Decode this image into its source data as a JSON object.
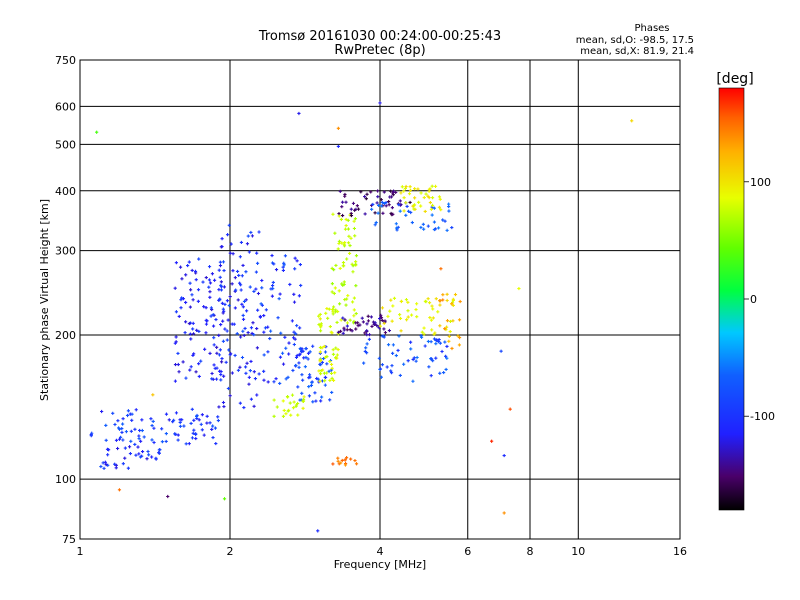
{
  "chart_data": {
    "type": "scatter",
    "title_line1": "Tromsø 20161030 00:24:00-00:25:43",
    "title_line2": "RwPretec (8p)",
    "stats": {
      "heading": "Phases",
      "o_line": "mean, sd,O: -98.5, 17.5",
      "x_line": "mean, sd,X:  81.9, 21.4"
    },
    "xlabel": "Frequency [MHz]",
    "ylabel": "Stationary phase Virtual Height [km]",
    "xscale": "log",
    "yscale": "log",
    "xlim": [
      1,
      16
    ],
    "ylim": [
      75,
      750
    ],
    "x_ticks": [
      "1",
      "2",
      "4",
      "6",
      "8",
      "10",
      "16"
    ],
    "x_tick_values": [
      1,
      2,
      4,
      6,
      8,
      10,
      16
    ],
    "x_grid": [
      2,
      4,
      6,
      8,
      10
    ],
    "y_ticks": [
      "75",
      "100",
      "200",
      "300",
      "400",
      "500",
      "600",
      "750"
    ],
    "y_tick_values": [
      75,
      100,
      200,
      300,
      400,
      500,
      600,
      750
    ],
    "y_grid": [
      100,
      200,
      300,
      400,
      500,
      600
    ],
    "grid": true,
    "colorbar": {
      "label": "[deg]",
      "range": [
        -180,
        180
      ],
      "ticks": [
        "100",
        "0",
        "-100"
      ],
      "tick_values": [
        100,
        0,
        -100
      ]
    },
    "clusters": [
      {
        "f0": 1.05,
        "f1": 1.9,
        "h0": 118,
        "h1": 140,
        "phase": -105,
        "n": 90
      },
      {
        "f0": 1.1,
        "f1": 1.45,
        "h0": 105,
        "h1": 118,
        "phase": -110,
        "n": 35
      },
      {
        "f0": 1.55,
        "f1": 1.95,
        "h0": 160,
        "h1": 290,
        "phase": -115,
        "n": 110
      },
      {
        "f0": 1.9,
        "f1": 2.3,
        "h0": 140,
        "h1": 340,
        "phase": -110,
        "n": 110
      },
      {
        "f0": 2.3,
        "f1": 2.8,
        "h0": 155,
        "h1": 300,
        "phase": -105,
        "n": 70
      },
      {
        "f0": 2.7,
        "f1": 3.2,
        "h0": 145,
        "h1": 190,
        "phase": -100,
        "n": 60
      },
      {
        "f0": 2.45,
        "f1": 2.9,
        "h0": 135,
        "h1": 150,
        "phase": 80,
        "n": 25
      },
      {
        "f0": 3.0,
        "f1": 3.3,
        "h0": 160,
        "h1": 230,
        "phase": 85,
        "n": 55
      },
      {
        "f0": 3.2,
        "f1": 3.6,
        "h0": 210,
        "h1": 360,
        "phase": 75,
        "n": 70
      },
      {
        "f0": 3.3,
        "f1": 4.2,
        "h0": 200,
        "h1": 220,
        "phase": -140,
        "n": 45
      },
      {
        "f0": 3.3,
        "f1": 4.6,
        "h0": 355,
        "h1": 400,
        "phase": -150,
        "n": 50
      },
      {
        "f0": 3.8,
        "f1": 5.6,
        "h0": 330,
        "h1": 380,
        "phase": -90,
        "n": 40
      },
      {
        "f0": 4.4,
        "f1": 5.3,
        "h0": 360,
        "h1": 410,
        "phase": 95,
        "n": 40
      },
      {
        "f0": 3.6,
        "f1": 5.5,
        "h0": 160,
        "h1": 200,
        "phase": -95,
        "n": 60
      },
      {
        "f0": 4.0,
        "f1": 5.7,
        "h0": 200,
        "h1": 240,
        "phase": 95,
        "n": 50
      },
      {
        "f0": 5.2,
        "f1": 5.8,
        "h0": 185,
        "h1": 245,
        "phase": 130,
        "n": 20
      },
      {
        "f0": 3.1,
        "f1": 3.6,
        "h0": 107,
        "h1": 111,
        "phase": 150,
        "n": 14
      }
    ],
    "outliers": [
      {
        "f": 1.08,
        "h": 530,
        "phase": 30
      },
      {
        "f": 2.75,
        "h": 580,
        "phase": -120
      },
      {
        "f": 3.3,
        "h": 540,
        "phase": 140
      },
      {
        "f": 3.3,
        "h": 495,
        "phase": -110
      },
      {
        "f": 4.0,
        "h": 610,
        "phase": -120
      },
      {
        "f": 12.8,
        "h": 560,
        "phase": 110
      },
      {
        "f": 5.3,
        "h": 275,
        "phase": 150
      },
      {
        "f": 7.6,
        "h": 250,
        "phase": 90
      },
      {
        "f": 7.0,
        "h": 185,
        "phase": -100
      },
      {
        "f": 7.3,
        "h": 140,
        "phase": 160
      },
      {
        "f": 6.7,
        "h": 120,
        "phase": 170
      },
      {
        "f": 7.1,
        "h": 112,
        "phase": -110
      },
      {
        "f": 7.1,
        "h": 85,
        "phase": 140
      },
      {
        "f": 1.2,
        "h": 95,
        "phase": 150
      },
      {
        "f": 1.5,
        "h": 92,
        "phase": -150
      },
      {
        "f": 1.95,
        "h": 91,
        "phase": 40
      },
      {
        "f": 1.4,
        "h": 150,
        "phase": 120
      },
      {
        "f": 3.0,
        "h": 78,
        "phase": -110
      }
    ]
  }
}
